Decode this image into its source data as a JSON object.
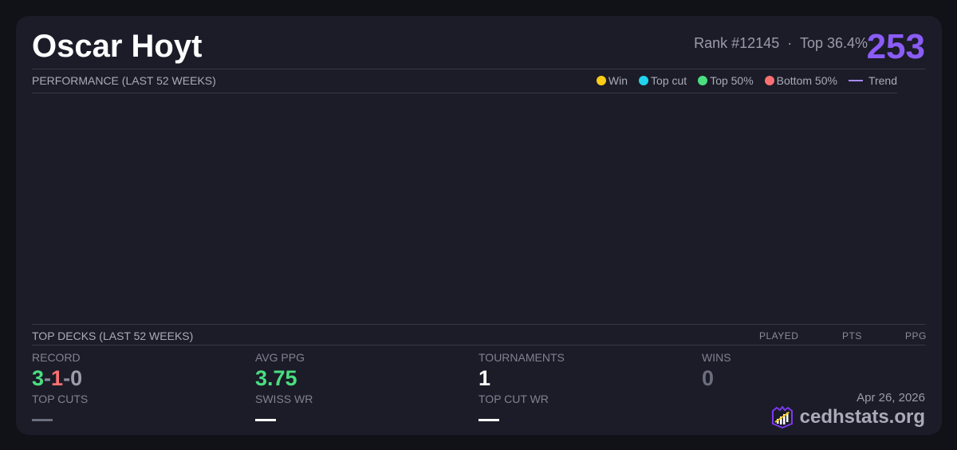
{
  "player": {
    "name": "Oscar Hoyt",
    "rank": "Rank #12145",
    "sep": "·",
    "top": "Top 36.4%",
    "score": "253"
  },
  "performance": {
    "title": "PERFORMANCE (LAST 52 WEEKS)",
    "legend": [
      {
        "label": "Win",
        "color": "#facc15"
      },
      {
        "label": "Top cut",
        "color": "#22d3ee"
      },
      {
        "label": "Top 50%",
        "color": "#4ade80"
      },
      {
        "label": "Bottom 50%",
        "color": "#f87171"
      }
    ],
    "trend_label": "Trend",
    "trend_color": "#a78bfa"
  },
  "top_decks": {
    "title": "TOP DECKS (LAST 52 WEEKS)",
    "columns": [
      "PLAYED",
      "PTS",
      "PPG"
    ]
  },
  "stats": {
    "record": {
      "label": "RECORD",
      "w": "3",
      "l": "1",
      "d": "0",
      "sep": "-"
    },
    "avg_ppg": {
      "label": "AVG PPG",
      "value": "3.75"
    },
    "tournaments": {
      "label": "TOURNAMENTS",
      "value": "1"
    },
    "wins": {
      "label": "WINS",
      "value": "0"
    },
    "top_cuts": {
      "label": "TOP CUTS",
      "value": "—"
    },
    "swiss_wr": {
      "label": "SWISS WR",
      "value": "—"
    },
    "top_cut_wr": {
      "label": "TOP CUT WR",
      "value": "—"
    }
  },
  "footer": {
    "date": "Apr 26, 2026",
    "brand": "cedhstats.org"
  }
}
